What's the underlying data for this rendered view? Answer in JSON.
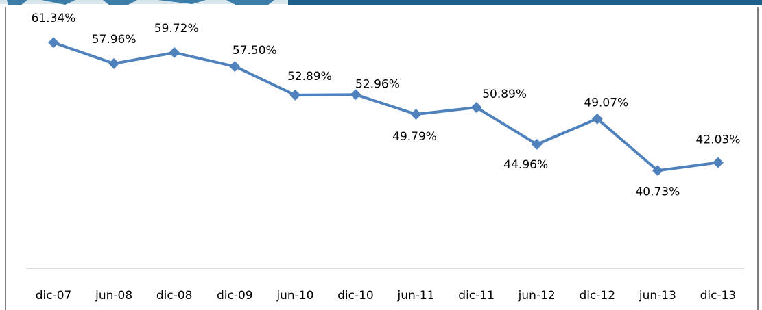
{
  "chart_data": {
    "type": "line",
    "categories": [
      "dic-07",
      "jun-08",
      "dic-08",
      "dic-09",
      "jun-10",
      "dic-10",
      "jun-11",
      "dic-11",
      "jun-12",
      "dic-12",
      "jun-13",
      "dic-13"
    ],
    "series": [
      {
        "color": "#4f81bd",
        "values": [
          61.34,
          57.96,
          59.72,
          57.5,
          52.89,
          52.96,
          49.79,
          50.89,
          44.96,
          49.07,
          40.73,
          42.03
        ],
        "value_labels": [
          "61.34%",
          "57.96%",
          "59.72%",
          "57.50%",
          "52.89%",
          "52.96%",
          "49.79%",
          "50.89%",
          "44.96%",
          "49.07%",
          "40.73%",
          "42.03%"
        ]
      }
    ],
    "ylim": [
      25,
      65
    ]
  }
}
